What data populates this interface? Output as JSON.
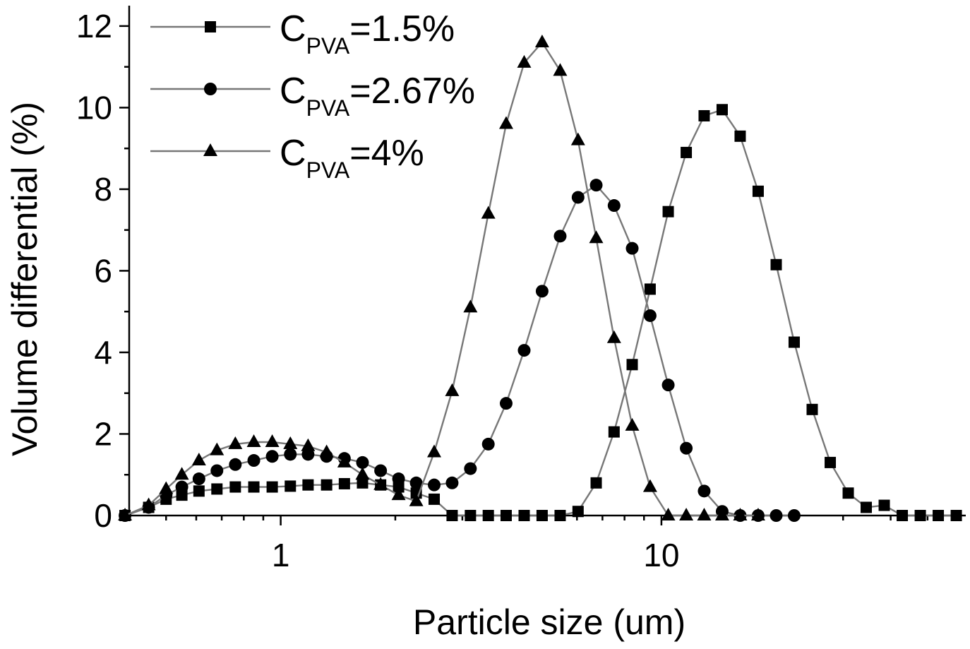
{
  "chart_data": {
    "type": "line",
    "xscale": "log",
    "xlabel": "Particle size (um)",
    "ylabel": "Volume differential (%)",
    "xlim": [
      0.4,
      63
    ],
    "ylim": [
      0,
      12.5
    ],
    "xticks": [
      1,
      10
    ],
    "xtick_labels": [
      "1",
      "10"
    ],
    "yticks": [
      0,
      2,
      4,
      6,
      8,
      10,
      12
    ],
    "ytick_labels": [
      "0",
      "2",
      "4",
      "6",
      "8",
      "10",
      "12"
    ],
    "grid": false,
    "legend_position": "top-left",
    "series": [
      {
        "name_main": "C",
        "name_sub": "PVA",
        "name_suffix": "=1.5%",
        "marker": "square",
        "x": [
          0.39,
          0.45,
          0.5,
          0.55,
          0.61,
          0.68,
          0.76,
          0.85,
          0.95,
          1.06,
          1.18,
          1.32,
          1.47,
          1.64,
          1.83,
          2.04,
          2.27,
          2.53,
          2.82,
          3.15,
          3.51,
          3.91,
          4.36,
          4.86,
          5.42,
          6.04,
          6.74,
          7.51,
          8.38,
          9.34,
          10.42,
          11.62,
          12.95,
          14.44,
          16.1,
          17.95,
          20.02,
          22.32,
          24.89,
          27.76,
          30.95,
          34.51,
          38.48,
          42.91,
          47.85,
          53.35,
          59.49
        ],
        "y": [
          0,
          0.2,
          0.4,
          0.5,
          0.6,
          0.65,
          0.7,
          0.7,
          0.7,
          0.72,
          0.75,
          0.75,
          0.78,
          0.8,
          0.75,
          0.7,
          0.55,
          0.4,
          0,
          0,
          0,
          0,
          0,
          0,
          0,
          0.1,
          0.8,
          2.05,
          3.7,
          5.55,
          7.45,
          8.9,
          9.8,
          9.95,
          9.3,
          7.95,
          6.15,
          4.25,
          2.6,
          1.3,
          0.55,
          0.2,
          0.25,
          0,
          0,
          0,
          0
        ]
      },
      {
        "name_main": "C",
        "name_sub": "PVA",
        "name_suffix": "=2.67%",
        "marker": "circle",
        "x": [
          0.39,
          0.45,
          0.5,
          0.55,
          0.61,
          0.68,
          0.76,
          0.85,
          0.95,
          1.06,
          1.18,
          1.32,
          1.47,
          1.64,
          1.83,
          2.04,
          2.27,
          2.53,
          2.82,
          3.15,
          3.51,
          3.91,
          4.36,
          4.86,
          5.42,
          6.04,
          6.74,
          7.51,
          8.38,
          9.34,
          10.42,
          11.62,
          12.95,
          14.44,
          16.1,
          17.95,
          20.02,
          22.32
        ],
        "y": [
          0,
          0.2,
          0.5,
          0.7,
          0.9,
          1.1,
          1.25,
          1.35,
          1.45,
          1.5,
          1.5,
          1.45,
          1.4,
          1.3,
          1.1,
          0.9,
          0.8,
          0.75,
          0.8,
          1.15,
          1.75,
          2.75,
          4.05,
          5.5,
          6.85,
          7.8,
          8.1,
          7.6,
          6.55,
          4.9,
          3.2,
          1.65,
          0.6,
          0.1,
          0,
          0,
          0,
          0
        ]
      },
      {
        "name_main": "C",
        "name_sub": "PVA",
        "name_suffix": "=4%",
        "marker": "triangle",
        "x": [
          0.39,
          0.45,
          0.5,
          0.55,
          0.61,
          0.68,
          0.76,
          0.85,
          0.95,
          1.06,
          1.18,
          1.32,
          1.47,
          1.64,
          1.83,
          2.04,
          2.27,
          2.53,
          2.82,
          3.15,
          3.51,
          3.91,
          4.36,
          4.86,
          5.42,
          6.04,
          6.74,
          7.51,
          8.38,
          9.34,
          10.42,
          11.62,
          12.95,
          14.44,
          16.1,
          17.95
        ],
        "y": [
          0,
          0.25,
          0.65,
          1.0,
          1.35,
          1.6,
          1.75,
          1.8,
          1.8,
          1.75,
          1.7,
          1.55,
          1.3,
          1.0,
          0.75,
          0.5,
          0.35,
          1.55,
          3.05,
          5.1,
          7.4,
          9.6,
          11.1,
          11.6,
          10.9,
          9.2,
          6.8,
          4.35,
          2.2,
          0.7,
          0,
          0,
          0,
          0,
          0,
          0
        ]
      }
    ]
  }
}
